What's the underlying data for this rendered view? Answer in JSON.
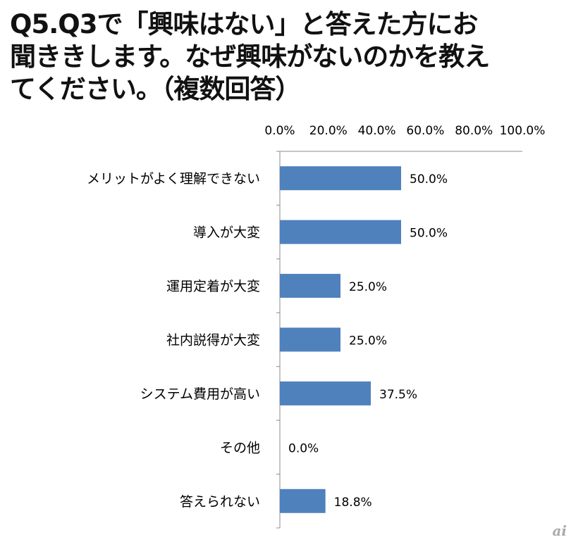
{
  "chart_data": {
    "type": "bar",
    "orientation": "horizontal",
    "title": "Q5.Q3で「興味はない」と答えた方にお\n聞ききします。なぜ興味がないのかを教え\nてください。（複数回答）",
    "categories": [
      "メリットがよく理解できない",
      "導入が大変",
      "運用定着が大変",
      "社内説得が大変",
      "システム費用が高い",
      "その他",
      "答えられない"
    ],
    "values": [
      50.0,
      50.0,
      25.0,
      25.0,
      37.5,
      0.0,
      18.8
    ],
    "data_labels": [
      "50.0%",
      "50.0%",
      "25.0%",
      "25.0%",
      "37.5%",
      "0.0%",
      "18.8%"
    ],
    "xlim": [
      0,
      100
    ],
    "x_ticks": [
      "0.0%",
      "20.0%",
      "40.0%",
      "60.0%",
      "80.0%",
      "100.0%"
    ],
    "x_axis_position": "top",
    "grid": false,
    "bar_color": "#4f81bd"
  },
  "watermark": "ai"
}
